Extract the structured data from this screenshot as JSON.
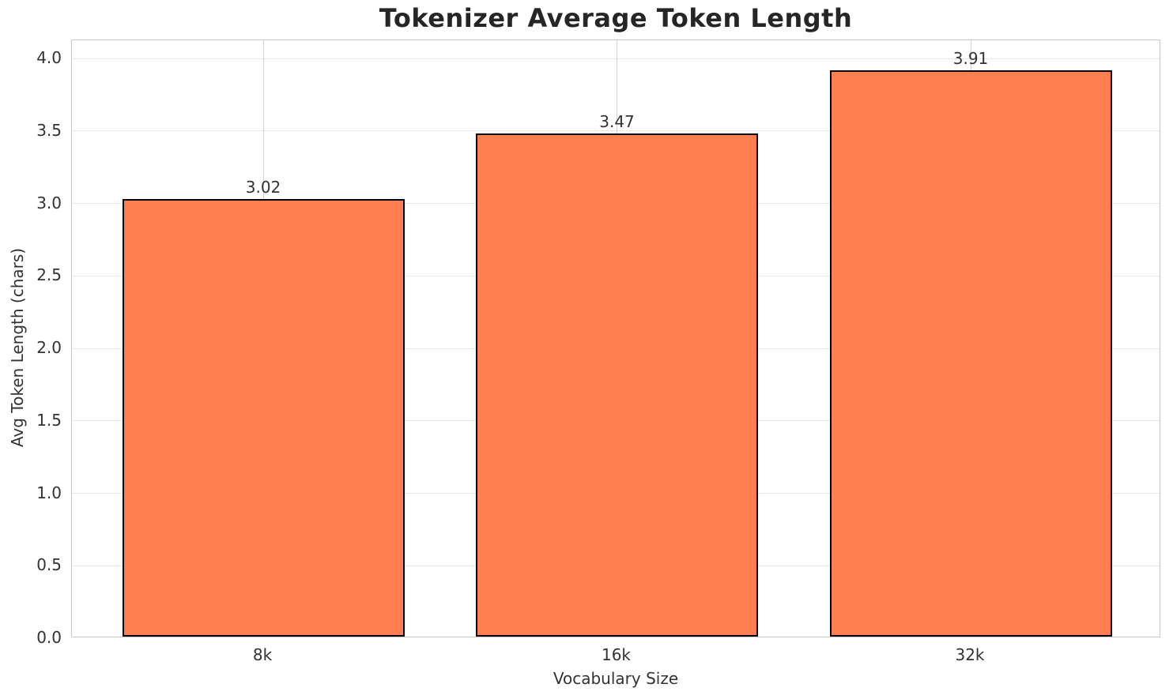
{
  "chart_data": {
    "type": "bar",
    "title": "Tokenizer Average Token Length",
    "xlabel": "Vocabulary Size",
    "ylabel": "Avg Token Length (chars)",
    "categories": [
      "8k",
      "16k",
      "32k"
    ],
    "values": [
      3.02,
      3.47,
      3.91
    ],
    "value_labels": [
      "3.02",
      "3.47",
      "3.91"
    ],
    "ylim": [
      0,
      4.125
    ],
    "yticks": [
      0.0,
      0.5,
      1.0,
      1.5,
      2.0,
      2.5,
      3.0,
      3.5,
      4.0
    ],
    "ytick_labels": [
      "0.0",
      "0.5",
      "1.0",
      "1.5",
      "2.0",
      "2.5",
      "3.0",
      "3.5",
      "4.0"
    ],
    "grid": true,
    "legend_position": "none",
    "colors": {
      "bar_fill": "#ff7f50",
      "bar_edge": "#000000",
      "grid_horizontal": "#e8e8e8",
      "grid_vertical": "#d3d3d3",
      "spine": "#c8c8c8",
      "text": "#333333",
      "title_text": "#262626",
      "background": "#ffffff"
    }
  }
}
